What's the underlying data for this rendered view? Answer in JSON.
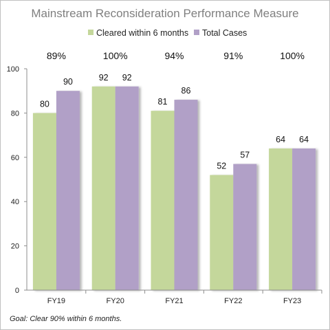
{
  "chart_data": {
    "type": "bar",
    "title": "Mainstream Reconsideration Performance Measure",
    "categories": [
      "FY19",
      "FY20",
      "FY21",
      "FY22",
      "FY23"
    ],
    "series": [
      {
        "name": "Cleared within 6 months",
        "values": [
          80,
          92,
          81,
          52,
          64
        ],
        "color": "#c4d79b"
      },
      {
        "name": "Total Cases",
        "values": [
          90,
          92,
          86,
          57,
          64
        ],
        "color": "#b1a0c7"
      }
    ],
    "percent_labels": [
      "89%",
      "100%",
      "94%",
      "91%",
      "100%"
    ],
    "ylim": [
      0,
      100
    ],
    "yticks": [
      0,
      20,
      40,
      60,
      80,
      100
    ],
    "legend_position": "top",
    "grid": false,
    "footnote": "Goal:  Clear 90% within 6 months."
  }
}
